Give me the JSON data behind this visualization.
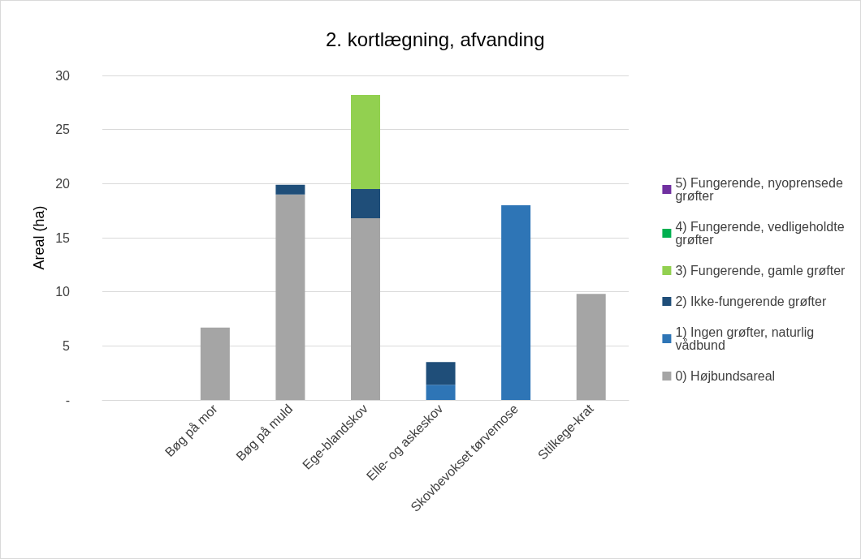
{
  "chart_data": {
    "type": "bar",
    "title": "2. kortlægning, afvanding",
    "ylabel": "Areal (ha)",
    "categories": [
      null,
      "Bøg på mor",
      "Bøg på muld",
      "Ege-blandskov",
      "Elle- og askeskov",
      "Skovbevokset tørvemose",
      "Stilkege-krat"
    ],
    "stacked": true,
    "series": [
      {
        "name": "0) Højbundsareal",
        "color": "#a5a5a5",
        "values": [
          null,
          6.7,
          19.0,
          16.8,
          null,
          null,
          9.8
        ]
      },
      {
        "name": "1) Ingen grøfter, naturlig vådbund",
        "color": "#2e75b6",
        "values": [
          null,
          null,
          null,
          null,
          1.4,
          18.0,
          null
        ]
      },
      {
        "name": "2) Ikke-fungerende grøfter",
        "color": "#1f4e79",
        "values": [
          null,
          null,
          0.9,
          2.7,
          2.1,
          null,
          null
        ]
      },
      {
        "name": "3) Fungerende, gamle grøfter",
        "color": "#92d050",
        "values": [
          null,
          null,
          null,
          8.7,
          null,
          null,
          null
        ]
      },
      {
        "name": "4) Fungerende, vedligeholdte grøfter",
        "color": "#00b050",
        "values": [
          null,
          null,
          null,
          null,
          null,
          null,
          null
        ]
      },
      {
        "name": "5) Fungerende, nyoprensede grøfter",
        "color": "#7030a0",
        "values": [
          null,
          null,
          null,
          null,
          null,
          null,
          null
        ]
      }
    ],
    "ylim": [
      0,
      30
    ],
    "yticks": [
      {
        "value": 0,
        "label": "-"
      },
      5,
      10,
      15,
      20,
      25,
      30
    ],
    "grid": "y",
    "legend": "right"
  }
}
